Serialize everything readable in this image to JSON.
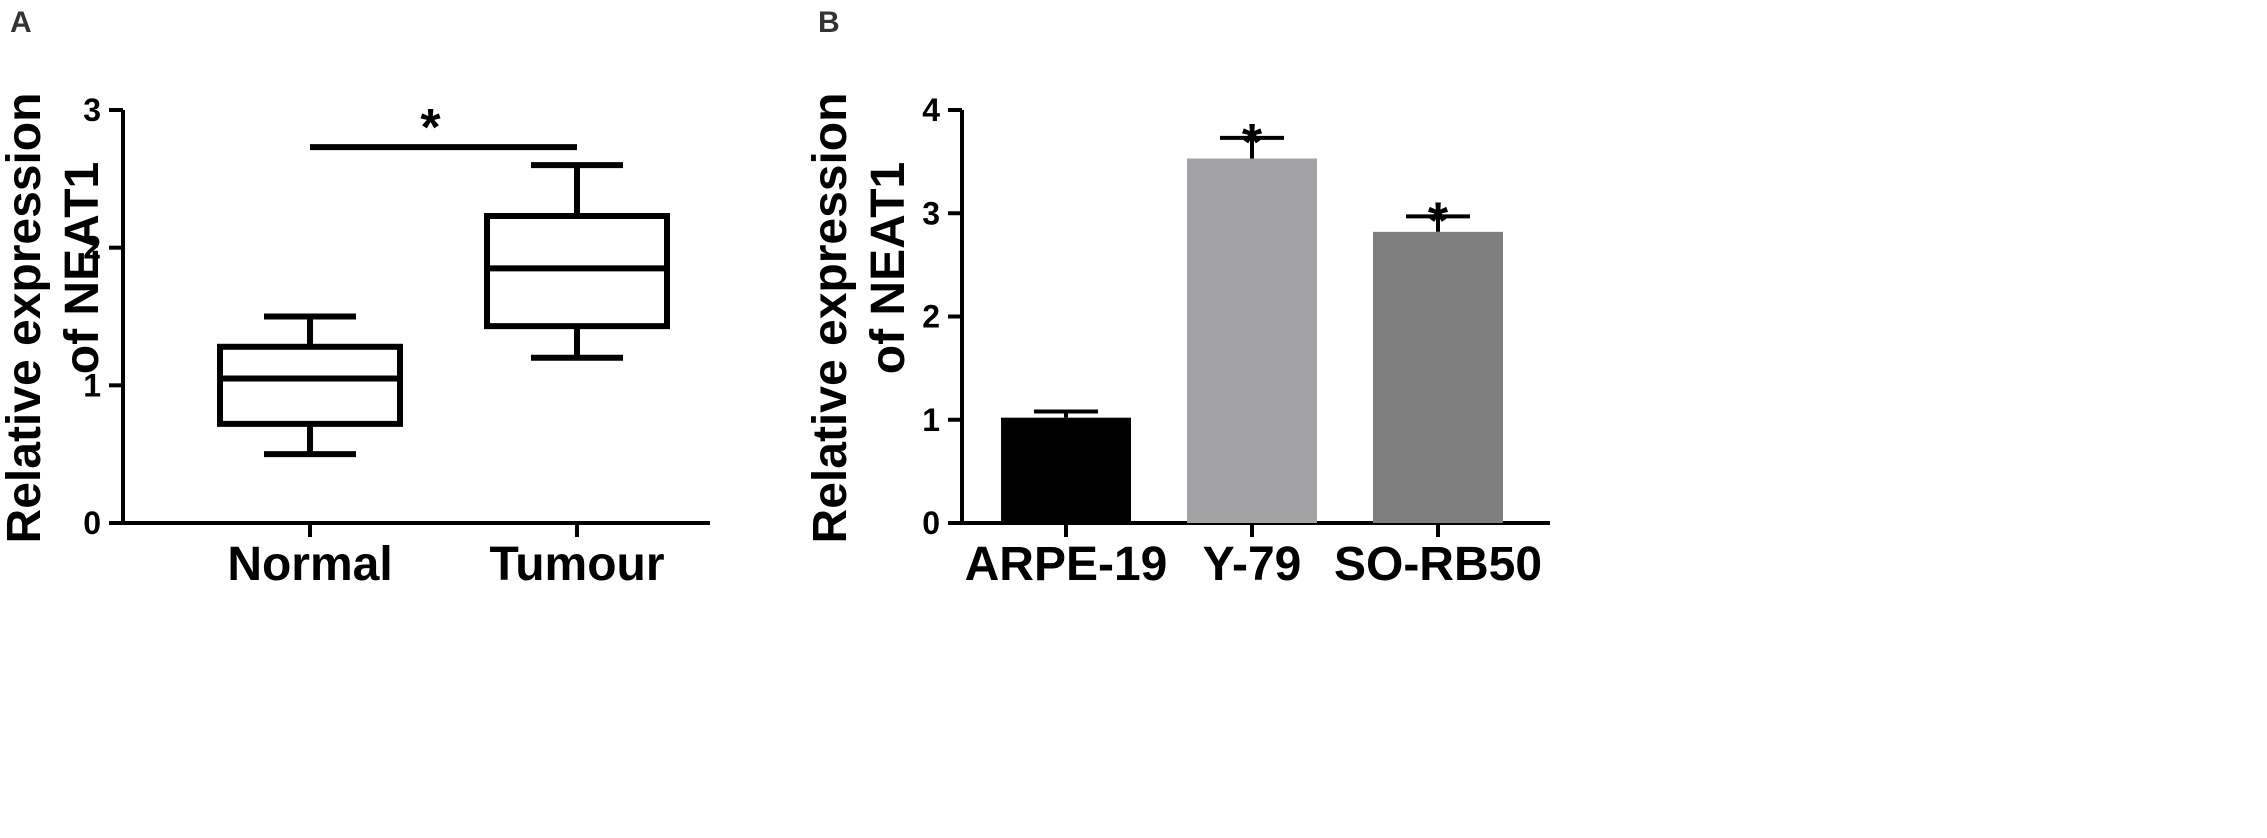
{
  "chart_data": [
    {
      "panel": "A",
      "type": "box",
      "ylabel_line1": "Relative expression",
      "ylabel_line2": "of NEAT1",
      "ylim": [
        0,
        3
      ],
      "yticks": [
        "0",
        "1",
        "2",
        "3"
      ],
      "categories": [
        "Normal",
        "Tumour"
      ],
      "boxes": [
        {
          "category": "Normal",
          "min": 0.5,
          "q1": 0.72,
          "median": 1.05,
          "q3": 1.28,
          "max": 1.5
        },
        {
          "category": "Tumour",
          "min": 1.2,
          "q1": 1.43,
          "median": 1.85,
          "q3": 2.23,
          "max": 2.6
        }
      ],
      "significance": {
        "label": "*",
        "between": [
          "Normal",
          "Tumour"
        ],
        "y": 2.73
      },
      "grid": false
    },
    {
      "panel": "B",
      "type": "bar",
      "ylabel_line1": "Relative expression",
      "ylabel_line2": "of NEAT1",
      "ylim": [
        0,
        4
      ],
      "yticks": [
        "0",
        "1",
        "2",
        "3",
        "4"
      ],
      "categories": [
        "ARPE-19",
        "Y-79",
        "SO-RB50"
      ],
      "values": [
        1.02,
        3.53,
        2.82
      ],
      "errors": [
        0.06,
        0.2,
        0.15
      ],
      "bar_colors": [
        "#000000",
        "#a2a2a4",
        "#7f7f7f"
      ],
      "significance_labels": [
        "",
        "*",
        "*"
      ],
      "grid": false
    }
  ]
}
